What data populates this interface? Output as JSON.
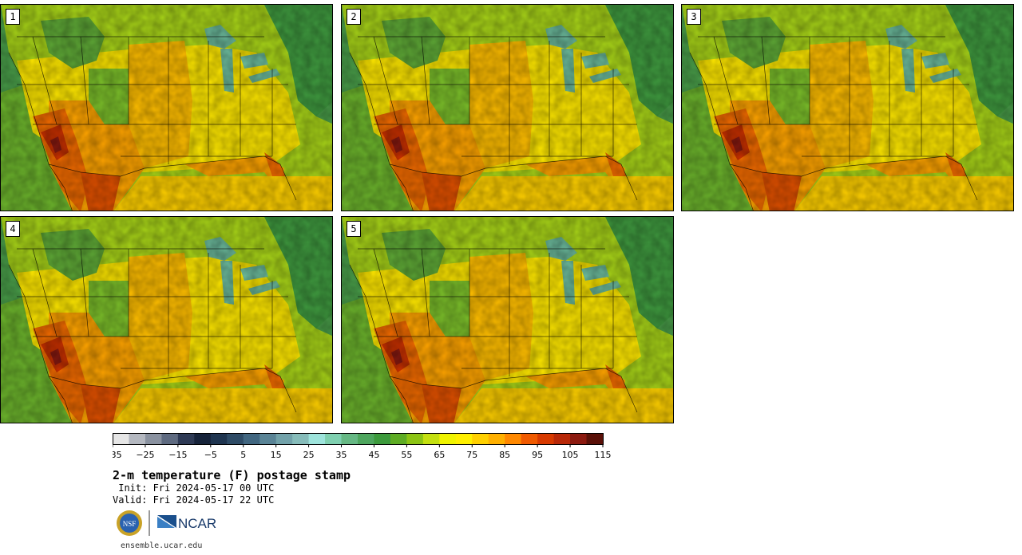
{
  "panels": [
    {
      "label": "1"
    },
    {
      "label": "2"
    },
    {
      "label": "3"
    },
    {
      "label": "4"
    },
    {
      "label": "5"
    }
  ],
  "colorbar": {
    "colors": [
      "#e6e6e6",
      "#b4b8c0",
      "#8a92a0",
      "#5e6a80",
      "#2e3a55",
      "#16233a",
      "#1f3550",
      "#2e4b66",
      "#416680",
      "#5a8496",
      "#72a2aa",
      "#86bcba",
      "#9ee4dc",
      "#7fd0b0",
      "#66b884",
      "#4ea65e",
      "#3c9a3c",
      "#5eac24",
      "#8cc414",
      "#c4e010",
      "#f0f400",
      "#fff000",
      "#ffd000",
      "#ffb000",
      "#ff8800",
      "#f05a00",
      "#d83a00",
      "#b82808",
      "#8c1a10",
      "#5a1008"
    ],
    "tick_labels": [
      "−35",
      "−25",
      "−15",
      "−5",
      "5",
      "15",
      "25",
      "35",
      "45",
      "55",
      "65",
      "75",
      "85",
      "95",
      "105",
      "115"
    ]
  },
  "title": "2-m temperature (F) postage stamp",
  "init": " Init: Fri 2024-05-17 00 UTC",
  "valid": "Valid: Fri 2024-05-17 22 UTC",
  "logos": {
    "nsf": "NSF",
    "ncar": "NCAR"
  },
  "site": "ensemble.ucar.edu"
}
